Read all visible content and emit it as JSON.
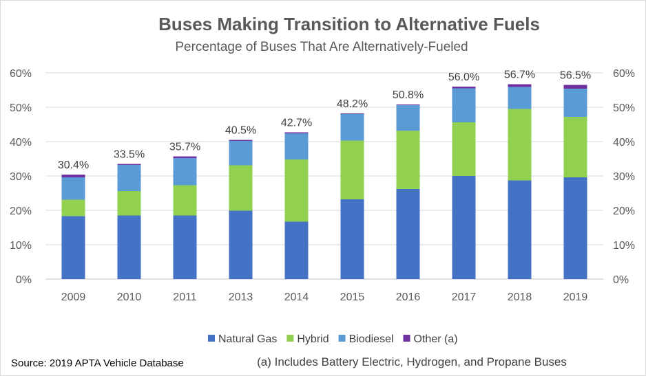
{
  "chart_data": {
    "type": "bar",
    "stacked": true,
    "title": "Buses Making Transition to Alternative Fuels",
    "subtitle": "Percentage of Buses That Are Alternatively-Fueled",
    "categories": [
      "2009",
      "2010",
      "2011",
      "2013",
      "2014",
      "2015",
      "2016",
      "2017",
      "2018",
      "2019"
    ],
    "series": [
      {
        "name": "Natural Gas",
        "color": "#4472C4",
        "values": [
          18.3,
          18.5,
          18.5,
          19.9,
          16.7,
          23.2,
          26.2,
          30.0,
          28.7,
          29.6
        ]
      },
      {
        "name": "Hybrid",
        "color": "#92D050",
        "values": [
          4.8,
          7.1,
          8.8,
          13.2,
          18.1,
          17.1,
          17.0,
          15.6,
          20.8,
          17.6
        ]
      },
      {
        "name": "Biodiesel",
        "color": "#5B9BD5",
        "values": [
          6.5,
          7.6,
          7.9,
          7.1,
          7.6,
          7.7,
          7.4,
          9.9,
          6.4,
          8.2
        ]
      },
      {
        "name": "Other (a)",
        "color": "#7030A0",
        "values": [
          0.8,
          0.3,
          0.5,
          0.3,
          0.3,
          0.2,
          0.2,
          0.5,
          0.8,
          1.1
        ]
      }
    ],
    "totals": [
      "30.4%",
      "33.5%",
      "35.7%",
      "40.5%",
      "42.7%",
      "48.2%",
      "50.8%",
      "56.0%",
      "56.7%",
      "56.5%"
    ],
    "ylim": [
      0,
      60
    ],
    "yticks": [
      "0%",
      "10%",
      "20%",
      "30%",
      "40%",
      "50%",
      "60%"
    ],
    "secondary_axis": true,
    "grid": true,
    "legend_position": "bottom"
  },
  "footer": {
    "source": "Source: 2019 APTA Vehicle Database",
    "note": "(a) Includes Battery Electric, Hydrogen, and Propane Buses"
  }
}
